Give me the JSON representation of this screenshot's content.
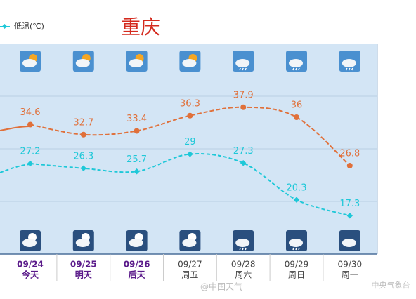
{
  "chart_data": {
    "type": "line",
    "title": "重庆",
    "categories": [
      "09/24",
      "09/25",
      "09/26",
      "09/27",
      "09/28",
      "09/29",
      "09/30"
    ],
    "category_sublabels": [
      "今天",
      "明天",
      "后天",
      "周五",
      "周六",
      "周日",
      "周一"
    ],
    "series": [
      {
        "color": "#e0703a",
        "values": [
          34.6,
          32.7,
          33.4,
          36.3,
          37.9,
          36,
          26.8
        ]
      },
      {
        "name": "低温(℃)",
        "color": "#1ec8d8",
        "values": [
          27.2,
          26.3,
          25.7,
          29,
          27.3,
          20.3,
          17.3
        ]
      }
    ],
    "ylim": [
      10,
      50
    ],
    "yticks": [
      20,
      30,
      40
    ],
    "grid": true,
    "watermarks": [
      "@中国天气",
      "中央气象台"
    ]
  }
}
